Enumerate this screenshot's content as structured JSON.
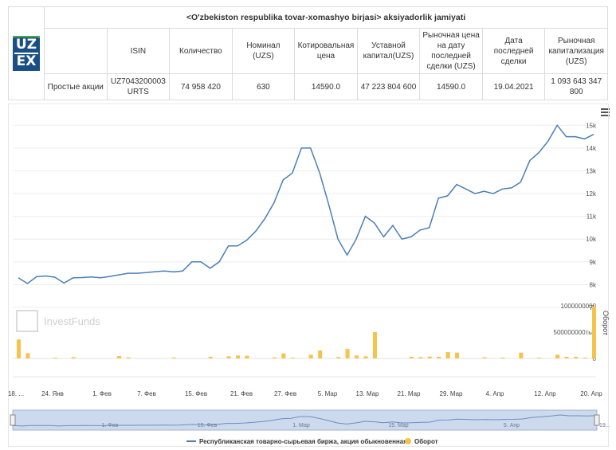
{
  "header": {
    "title": "<O'zbekiston respublika tovar-xomashyo birjasi> aksiyadorlik jamiyati",
    "logo_top": "UZ",
    "logo_bottom": "EX",
    "columns": [
      "ISIN",
      "Количество",
      "Номинал (UZS)",
      "Котировальная цена",
      "Уставной капитал(UZS)",
      "Рыночная цена на дату последней сделки (UZS)",
      "Дата последней сделки",
      "Рыночная капитализация (UZS)"
    ],
    "row_label": "Простые акции",
    "values": [
      "UZ7043200003 URTS",
      "74 958 420",
      "630",
      "14590.0",
      "47 223 804 600",
      "14590.0",
      "19.04.2021",
      "1 093 643 347 800"
    ]
  },
  "watermark": "InvestFunds",
  "colors": {
    "line": "#4a7fb5",
    "bar": "#f5c24a",
    "navigator_fill": "#cdd9ec"
  },
  "chart_data": {
    "type": "line",
    "x_ticks": [
      "18. ...",
      "24. Янв",
      "1. Фев",
      "7. Фев",
      "15. Фев",
      "21. Фев",
      "27. Фев",
      "5. Мар",
      "13. Мар",
      "21. Мар",
      "29. Мар",
      "4. Апр",
      "12. Апр",
      "20. Апр"
    ],
    "y_ticks": [
      "15k",
      "14k",
      "13k",
      "12k",
      "11k",
      "10k",
      "9k",
      "8k",
      "7k"
    ],
    "ylim": [
      7000,
      15500
    ],
    "series": [
      {
        "name": "Республиканская товарно-сырьевая биржа, акция обыкновенная",
        "values": [
          8300,
          8050,
          8350,
          8380,
          8330,
          8070,
          8300,
          8310,
          8340,
          8300,
          8360,
          8430,
          8500,
          8500,
          8530,
          8570,
          8600,
          8560,
          8600,
          9000,
          9000,
          8720,
          9000,
          9700,
          9700,
          9950,
          10350,
          10900,
          11600,
          12600,
          12900,
          14000,
          14000,
          12900,
          11500,
          10000,
          9300,
          10000,
          11000,
          10700,
          10100,
          10600,
          10000,
          10100,
          10400,
          10500,
          11800,
          11900,
          12400,
          12200,
          12000,
          12100,
          12000,
          12200,
          12250,
          12500,
          13450,
          13800,
          14300,
          15000,
          14500,
          14500,
          14400,
          14600
        ]
      }
    ],
    "volume": {
      "name": "Оборот",
      "label": "Оборот",
      "ticks": [
        "1000000000",
        "500000000тыс",
        "0"
      ],
      "ylim": [
        0,
        1000000000
      ],
      "bars": [
        {
          "i": 0,
          "v": 360000000
        },
        {
          "i": 1,
          "v": 100000000
        },
        {
          "i": 4,
          "v": 12000000
        },
        {
          "i": 6,
          "v": 25000000
        },
        {
          "i": 11,
          "v": 45000000
        },
        {
          "i": 12,
          "v": 20000000
        },
        {
          "i": 17,
          "v": 18000000
        },
        {
          "i": 21,
          "v": 30000000
        },
        {
          "i": 23,
          "v": 40000000
        },
        {
          "i": 24,
          "v": 55000000
        },
        {
          "i": 25,
          "v": 50000000
        },
        {
          "i": 28,
          "v": 20000000
        },
        {
          "i": 29,
          "v": 95000000
        },
        {
          "i": 30,
          "v": 15000000
        },
        {
          "i": 32,
          "v": 70000000
        },
        {
          "i": 33,
          "v": 150000000
        },
        {
          "i": 35,
          "v": 25000000
        },
        {
          "i": 36,
          "v": 180000000
        },
        {
          "i": 37,
          "v": 55000000
        },
        {
          "i": 38,
          "v": 40000000
        },
        {
          "i": 39,
          "v": 500000000
        },
        {
          "i": 43,
          "v": 30000000
        },
        {
          "i": 44,
          "v": 25000000
        },
        {
          "i": 45,
          "v": 35000000
        },
        {
          "i": 46,
          "v": 30000000
        },
        {
          "i": 47,
          "v": 120000000
        },
        {
          "i": 48,
          "v": 110000000
        },
        {
          "i": 51,
          "v": 20000000
        },
        {
          "i": 53,
          "v": 15000000
        },
        {
          "i": 55,
          "v": 110000000
        },
        {
          "i": 57,
          "v": 15000000
        },
        {
          "i": 59,
          "v": 70000000
        },
        {
          "i": 60,
          "v": 30000000
        },
        {
          "i": 61,
          "v": 30000000
        },
        {
          "i": 62,
          "v": 15000000
        },
        {
          "i": 63,
          "v": 30000000
        },
        {
          "i": 64,
          "v": 990000000
        }
      ]
    },
    "navigator": {
      "labels": [
        "1. Фев",
        "15. Фев",
        "1. Мар",
        "15. Мар",
        "5. Апр"
      ],
      "end_label": "19..."
    },
    "legend": {
      "position": "bottom",
      "line_label": "Республиканская товарно-сырьевая биржа, акция обыкновенная",
      "bar_label": "Оборот"
    }
  }
}
